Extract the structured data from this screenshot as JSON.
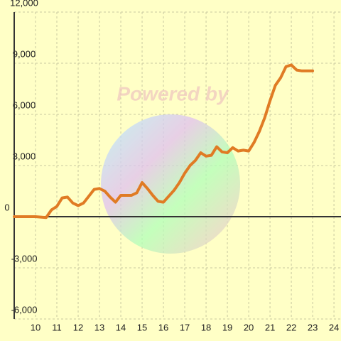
{
  "chart_data": {
    "type": "line",
    "watermark": "Powered by",
    "x": [
      9,
      10,
      10.5,
      10.75,
      11,
      11.25,
      11.5,
      11.75,
      12,
      12.25,
      12.5,
      12.75,
      13,
      13.25,
      13.5,
      13.75,
      14,
      14.25,
      14.5,
      14.75,
      15,
      15.25,
      15.5,
      15.75,
      16,
      16.25,
      16.5,
      16.75,
      17,
      17.25,
      17.5,
      17.75,
      18,
      18.25,
      18.5,
      18.75,
      19,
      19.25,
      19.5,
      19.75,
      20,
      20.25,
      20.5,
      20.75,
      21,
      21.25,
      21.5,
      21.75,
      22,
      22.25,
      22.5,
      22.75,
      23
    ],
    "series": [
      {
        "color": "#e07b24",
        "values": [
          0,
          0,
          -50,
          400,
          600,
          1100,
          1150,
          800,
          650,
          800,
          1200,
          1600,
          1650,
          1500,
          1150,
          850,
          1250,
          1250,
          1250,
          1400,
          2000,
          1650,
          1250,
          900,
          850,
          1200,
          1550,
          2000,
          2550,
          3000,
          3300,
          3750,
          3550,
          3600,
          4100,
          3800,
          3750,
          4050,
          3850,
          3900,
          3850,
          4350,
          5000,
          5800,
          6800,
          7700,
          8150,
          8800,
          8900,
          8600,
          8550,
          8550,
          8550
        ]
      }
    ],
    "xlim": [
      9,
      24.33
    ],
    "xticks": [
      10,
      11,
      12,
      13,
      14,
      15,
      16,
      17,
      18,
      19,
      20,
      21,
      22,
      23,
      24
    ],
    "ylim": [
      -6000,
      12000
    ],
    "yticks": [
      {
        "value": -6000,
        "label": "-6,000"
      },
      {
        "value": -3000,
        "label": "-3,000"
      },
      0,
      {
        "value": 3000,
        "label": "3,000"
      },
      {
        "value": 6000,
        "label": "6,000"
      },
      {
        "value": 9000,
        "label": "9,000"
      },
      {
        "value": 12000,
        "label": "12,000"
      }
    ],
    "grid": true
  }
}
